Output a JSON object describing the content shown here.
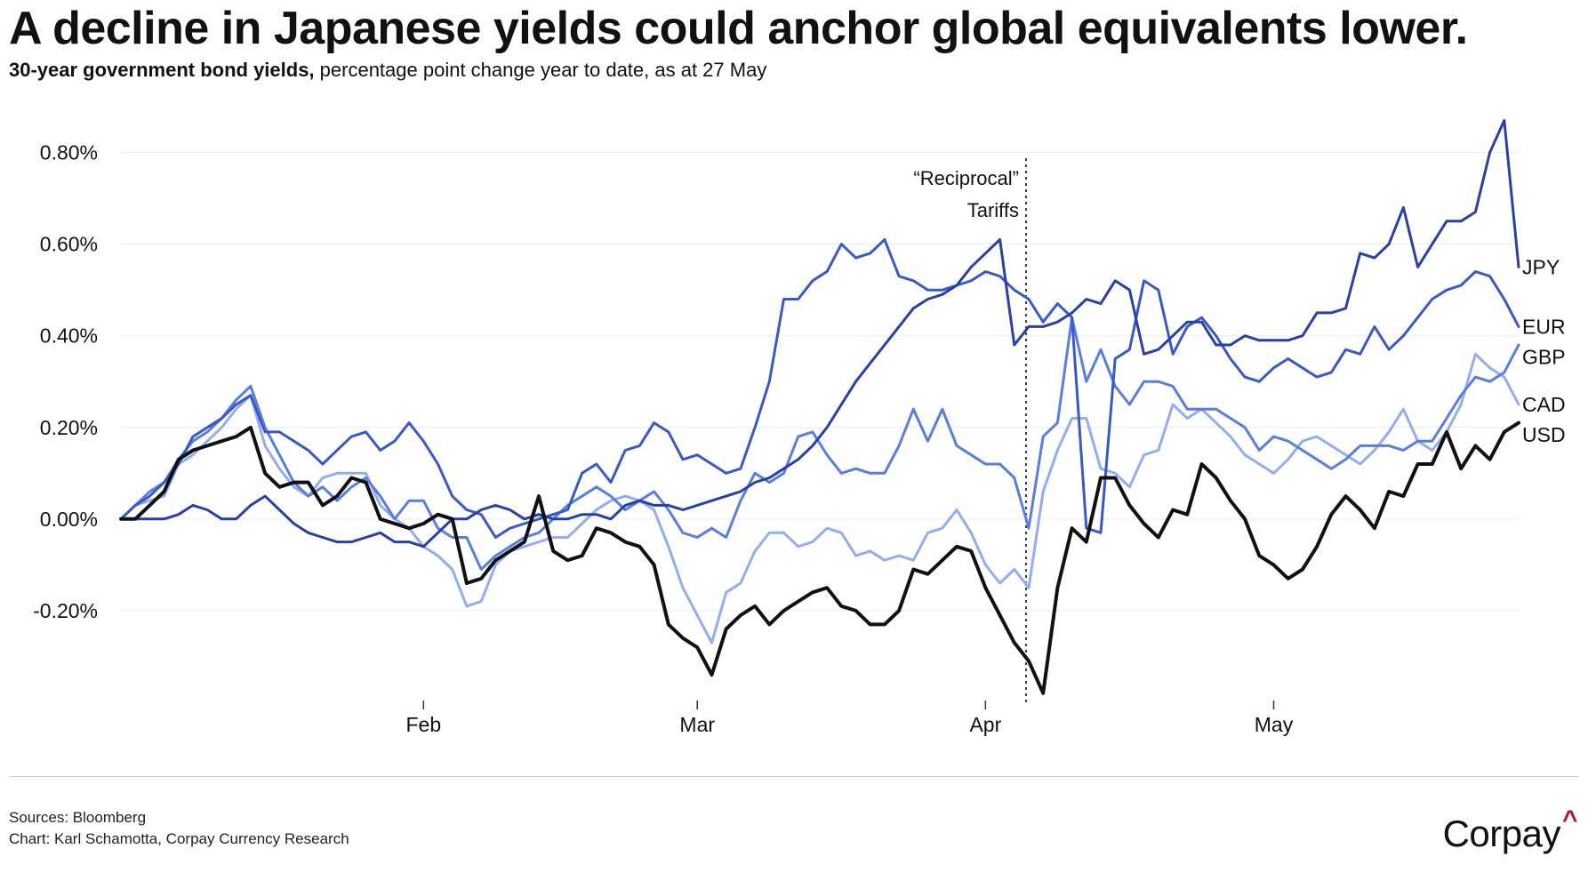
{
  "title": "A decline in Japanese yields could anchor global equivalents lower.",
  "subtitle_bold": "30-year government bond yields,",
  "subtitle_rest": " percentage point change year to date, as at 27 May",
  "sources": "Sources: Bloomberg",
  "credit": "Chart: Karl Schamotta, Corpay Currency Research",
  "logo": {
    "text": "Corpay",
    "mark": "^",
    "mark_color": "#b0173d"
  },
  "chart_data": {
    "type": "line",
    "title": "",
    "xlabel": "",
    "ylabel": "",
    "ylim": [
      -0.4,
      0.9
    ],
    "yticks": [
      0.8,
      0.6,
      0.4,
      0.2,
      0.0,
      -0.2
    ],
    "yticklabels": [
      "0.80%",
      "0.60%",
      "0.40%",
      "0.20%",
      "0.00%",
      "-0.20%"
    ],
    "grid": true,
    "x_count": 98,
    "xticks": [
      {
        "index": 21,
        "label": "Feb"
      },
      {
        "index": 40,
        "label": "Mar"
      },
      {
        "index": 60,
        "label": "Apr"
      },
      {
        "index": 80,
        "label": "May"
      }
    ],
    "annotation": {
      "index": 63,
      "line1": "“Reciprocal”",
      "line2": "Tariffs"
    },
    "series": [
      {
        "name": "JPY",
        "color": "#2a40a6",
        "values": [
          0.0,
          0.0,
          0.0,
          0.0,
          0.01,
          0.03,
          0.02,
          0.0,
          0.0,
          0.03,
          0.05,
          0.02,
          -0.01,
          -0.03,
          -0.04,
          -0.05,
          -0.05,
          -0.04,
          -0.03,
          -0.05,
          -0.05,
          -0.06,
          -0.03,
          0.0,
          0.0,
          0.02,
          0.03,
          0.02,
          0.0,
          0.01,
          0.0,
          0.0,
          0.01,
          0.01,
          0.0,
          0.03,
          0.04,
          0.03,
          0.03,
          0.02,
          0.03,
          0.04,
          0.05,
          0.06,
          0.08,
          0.09,
          0.11,
          0.13,
          0.16,
          0.2,
          0.25,
          0.3,
          0.34,
          0.38,
          0.42,
          0.46,
          0.48,
          0.49,
          0.51,
          0.55,
          0.58,
          0.61,
          0.38,
          0.42,
          0.42,
          0.43,
          0.45,
          0.48,
          0.47,
          0.52,
          0.5,
          0.36,
          0.37,
          0.4,
          0.43,
          0.43,
          0.38,
          0.38,
          0.4,
          0.39,
          0.39,
          0.39,
          0.4,
          0.45,
          0.45,
          0.46,
          0.58,
          0.57,
          0.6,
          0.68,
          0.55,
          0.6,
          0.65,
          0.65,
          0.67,
          0.8,
          0.87,
          0.55
        ]
      },
      {
        "name": "EUR",
        "color": "#3a59c8",
        "values": [
          0.0,
          0.03,
          0.05,
          0.08,
          0.12,
          0.18,
          0.2,
          0.22,
          0.25,
          0.27,
          0.19,
          0.19,
          0.17,
          0.15,
          0.12,
          0.15,
          0.18,
          0.19,
          0.15,
          0.17,
          0.21,
          0.17,
          0.12,
          0.05,
          0.02,
          0.01,
          -0.04,
          -0.02,
          -0.01,
          0.0,
          0.01,
          0.02,
          0.1,
          0.12,
          0.08,
          0.15,
          0.16,
          0.21,
          0.19,
          0.13,
          0.14,
          0.12,
          0.1,
          0.11,
          0.2,
          0.3,
          0.48,
          0.48,
          0.52,
          0.54,
          0.6,
          0.57,
          0.58,
          0.61,
          0.53,
          0.52,
          0.5,
          0.5,
          0.51,
          0.52,
          0.54,
          0.53,
          0.5,
          0.48,
          0.43,
          0.47,
          0.44,
          -0.02,
          -0.03,
          0.35,
          0.37,
          0.52,
          0.5,
          0.36,
          0.42,
          0.44,
          0.4,
          0.35,
          0.31,
          0.3,
          0.33,
          0.35,
          0.33,
          0.31,
          0.32,
          0.37,
          0.36,
          0.42,
          0.37,
          0.4,
          0.44,
          0.48,
          0.5,
          0.51,
          0.54,
          0.53,
          0.48,
          0.42
        ]
      },
      {
        "name": "GBP",
        "color": "#5a7ee0",
        "values": [
          0.0,
          0.03,
          0.06,
          0.08,
          0.13,
          0.17,
          0.19,
          0.22,
          0.26,
          0.29,
          0.2,
          0.14,
          0.08,
          0.05,
          0.07,
          0.04,
          0.07,
          0.09,
          0.05,
          0.0,
          0.04,
          0.04,
          -0.02,
          -0.04,
          -0.04,
          -0.11,
          -0.08,
          -0.06,
          -0.04,
          -0.03,
          0.0,
          0.03,
          0.05,
          0.07,
          0.05,
          0.02,
          0.04,
          0.06,
          0.02,
          -0.03,
          -0.04,
          -0.02,
          -0.04,
          0.04,
          0.1,
          0.08,
          0.1,
          0.18,
          0.19,
          0.14,
          0.1,
          0.11,
          0.1,
          0.1,
          0.16,
          0.24,
          0.17,
          0.24,
          0.16,
          0.14,
          0.12,
          0.12,
          0.09,
          -0.02,
          0.18,
          0.21,
          0.44,
          0.3,
          0.37,
          0.29,
          0.25,
          0.3,
          0.3,
          0.29,
          0.24,
          0.24,
          0.24,
          0.22,
          0.2,
          0.15,
          0.18,
          0.17,
          0.15,
          0.13,
          0.11,
          0.13,
          0.16,
          0.16,
          0.16,
          0.15,
          0.17,
          0.17,
          0.22,
          0.27,
          0.31,
          0.3,
          0.32,
          0.38
        ]
      },
      {
        "name": "CAD",
        "color": "#94adf0",
        "values": [
          0.0,
          0.03,
          0.04,
          0.05,
          0.12,
          0.14,
          0.17,
          0.2,
          0.24,
          0.27,
          0.16,
          0.11,
          0.07,
          0.05,
          0.09,
          0.1,
          0.1,
          0.1,
          0.03,
          0.0,
          -0.02,
          -0.06,
          -0.08,
          -0.11,
          -0.19,
          -0.18,
          -0.1,
          -0.07,
          -0.06,
          -0.05,
          -0.04,
          -0.04,
          -0.01,
          0.02,
          0.04,
          0.05,
          0.04,
          0.02,
          -0.06,
          -0.15,
          -0.21,
          -0.27,
          -0.16,
          -0.14,
          -0.07,
          -0.03,
          -0.03,
          -0.06,
          -0.05,
          -0.02,
          -0.03,
          -0.08,
          -0.07,
          -0.09,
          -0.08,
          -0.09,
          -0.03,
          -0.02,
          0.02,
          -0.03,
          -0.1,
          -0.14,
          -0.11,
          -0.15,
          0.06,
          0.15,
          0.22,
          0.22,
          0.11,
          0.1,
          0.07,
          0.14,
          0.15,
          0.25,
          0.22,
          0.24,
          0.21,
          0.18,
          0.14,
          0.12,
          0.1,
          0.13,
          0.17,
          0.18,
          0.16,
          0.14,
          0.12,
          0.15,
          0.19,
          0.24,
          0.17,
          0.15,
          0.19,
          0.25,
          0.36,
          0.33,
          0.31,
          0.25
        ]
      },
      {
        "name": "USD",
        "color": "#111111",
        "values": [
          0.0,
          0.0,
          0.03,
          0.06,
          0.13,
          0.15,
          0.16,
          0.17,
          0.18,
          0.2,
          0.1,
          0.07,
          0.08,
          0.08,
          0.03,
          0.05,
          0.09,
          0.08,
          0.0,
          -0.01,
          -0.02,
          -0.01,
          0.01,
          0.0,
          -0.14,
          -0.13,
          -0.09,
          -0.07,
          -0.05,
          0.05,
          -0.07,
          -0.09,
          -0.08,
          -0.02,
          -0.03,
          -0.05,
          -0.06,
          -0.1,
          -0.23,
          -0.26,
          -0.28,
          -0.34,
          -0.24,
          -0.21,
          -0.19,
          -0.23,
          -0.2,
          -0.18,
          -0.16,
          -0.15,
          -0.19,
          -0.2,
          -0.23,
          -0.23,
          -0.2,
          -0.11,
          -0.12,
          -0.09,
          -0.06,
          -0.07,
          -0.15,
          -0.21,
          -0.27,
          -0.31,
          -0.38,
          -0.15,
          -0.02,
          -0.05,
          0.09,
          0.09,
          0.03,
          -0.01,
          -0.04,
          0.02,
          0.01,
          0.12,
          0.09,
          0.04,
          0.0,
          -0.08,
          -0.1,
          -0.13,
          -0.11,
          -0.06,
          0.01,
          0.05,
          0.02,
          -0.02,
          0.06,
          0.05,
          0.12,
          0.12,
          0.19,
          0.11,
          0.16,
          0.13,
          0.19,
          0.21
        ]
      }
    ]
  }
}
